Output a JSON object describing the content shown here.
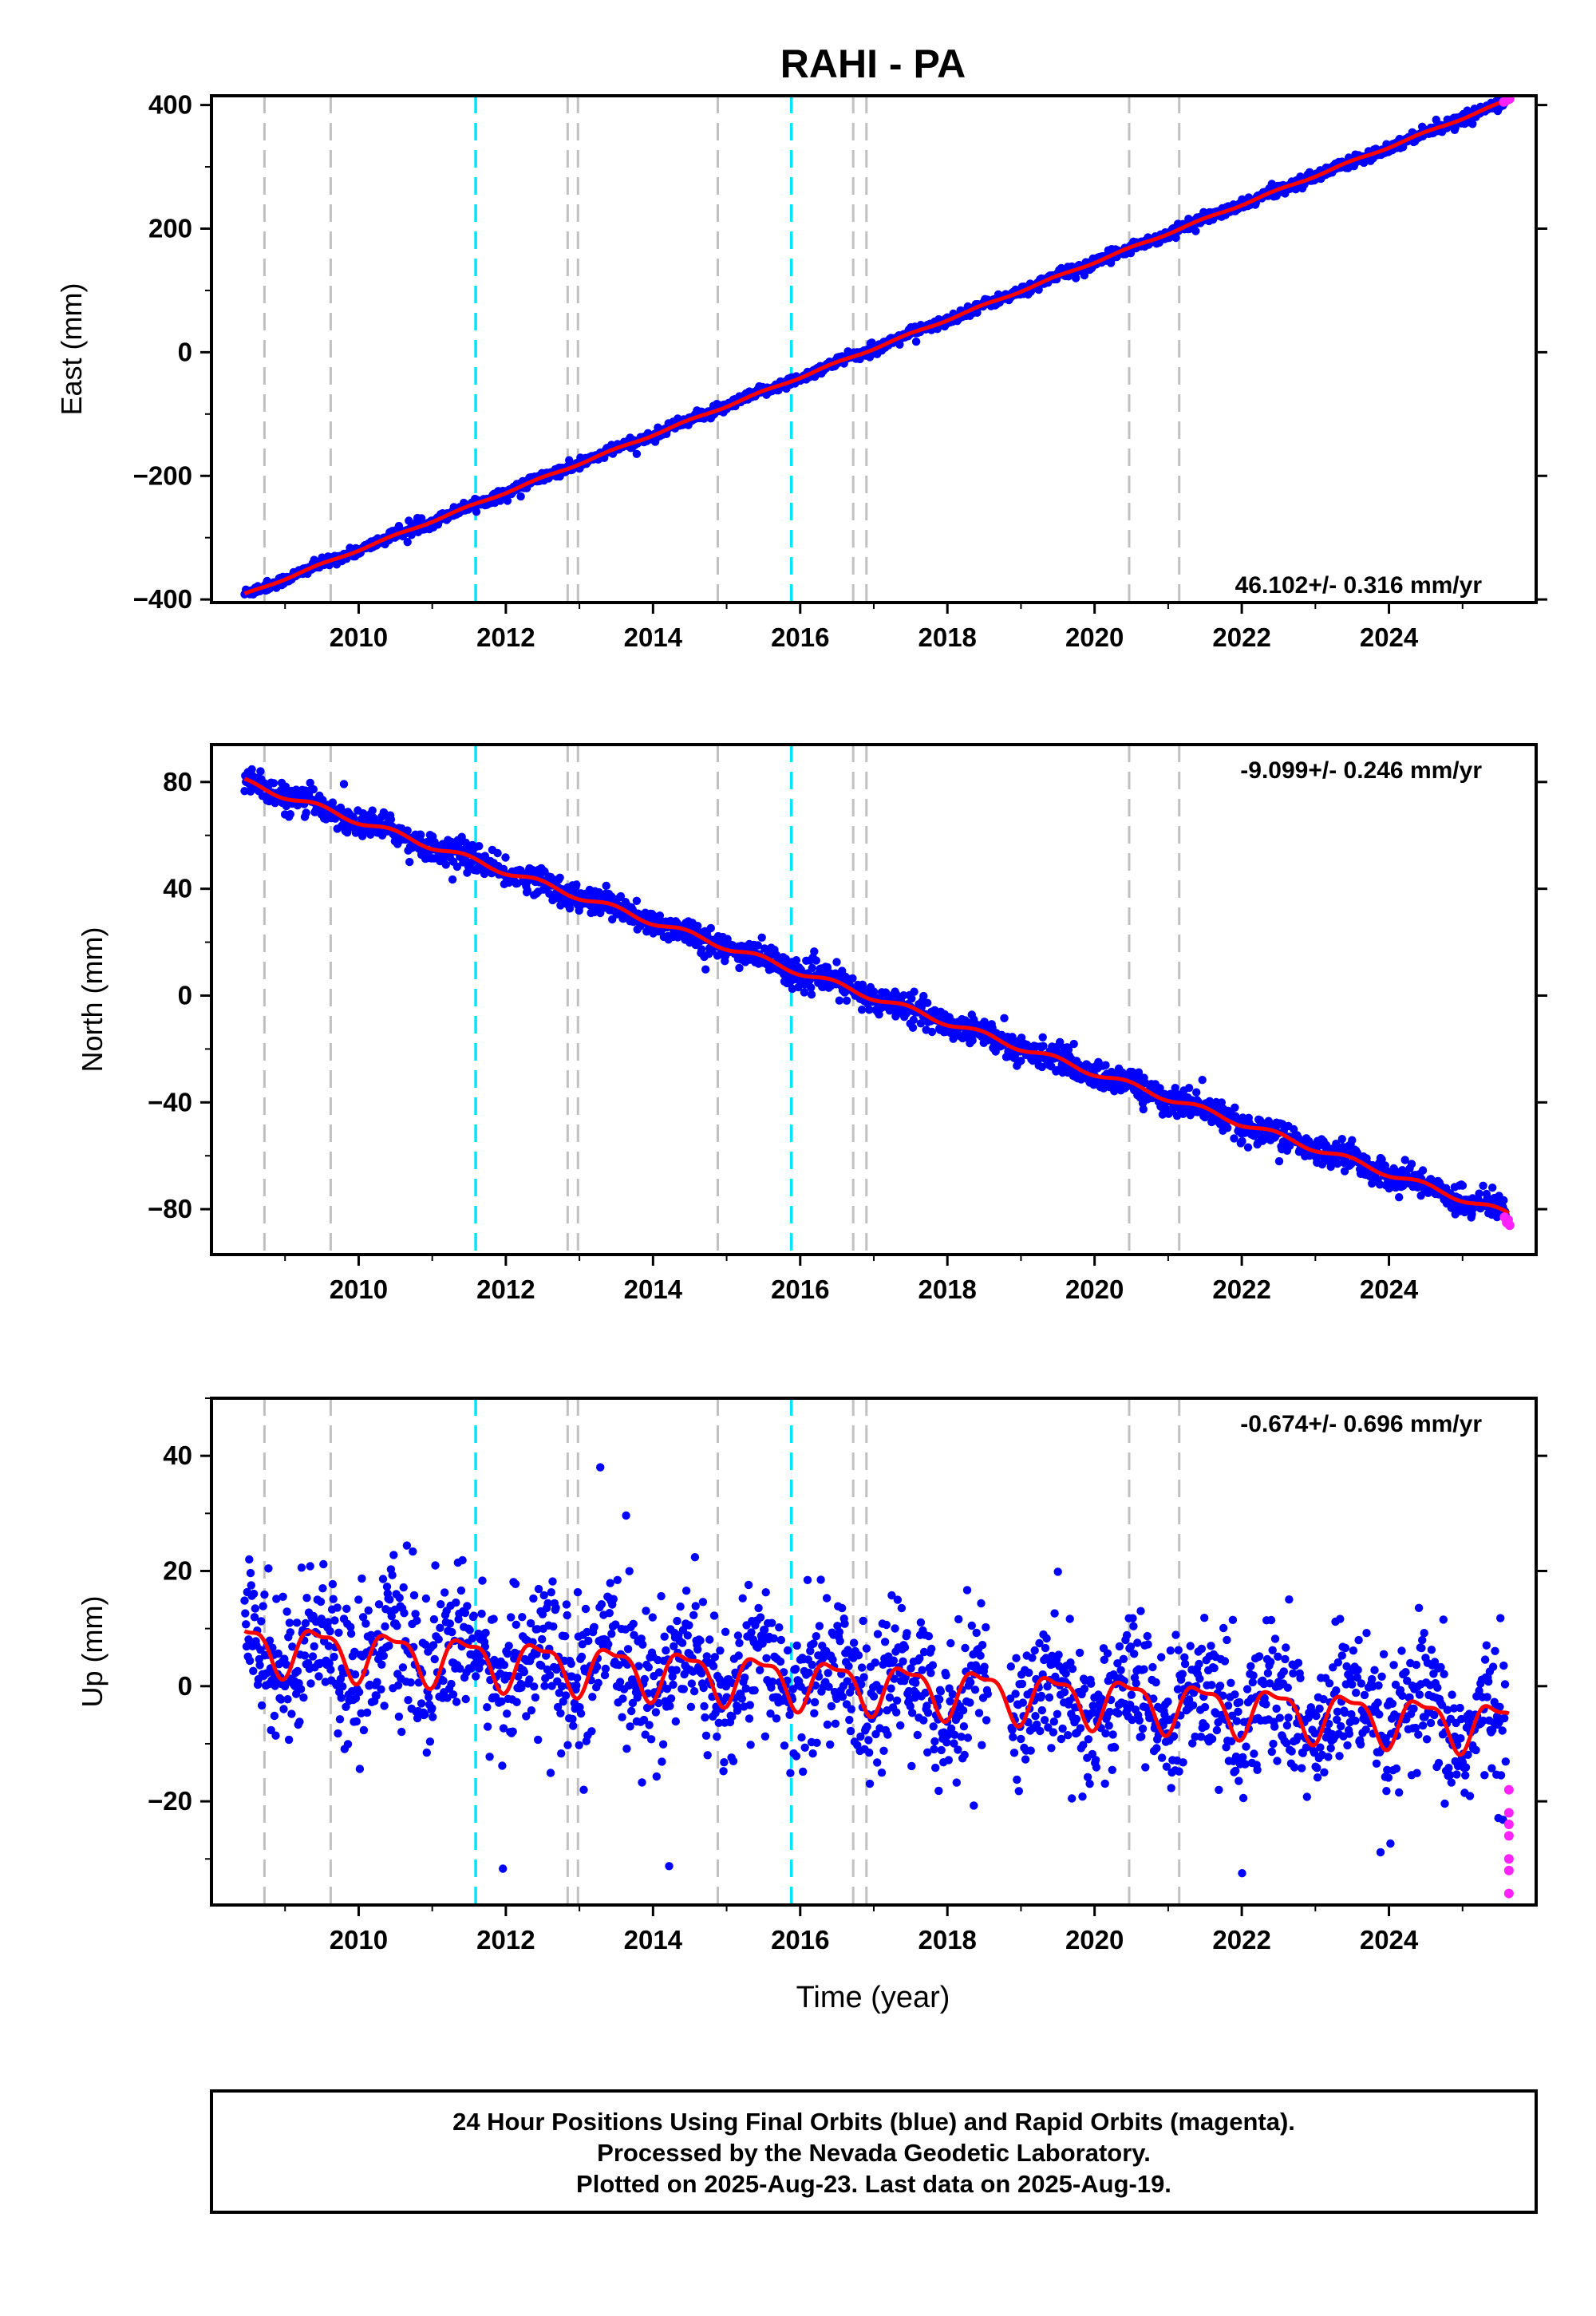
{
  "chart_data": [
    {
      "type": "scatter",
      "title": "RAHI - PA",
      "ylabel": "East (mm)",
      "xlim": [
        2008.0,
        2026.0
      ],
      "ylim": [
        -405,
        415
      ],
      "xticks": [
        2010,
        2012,
        2014,
        2016,
        2018,
        2020,
        2022,
        2024
      ],
      "yticks": [
        400,
        200,
        0,
        -200,
        -400
      ],
      "ytick_labels": [
        "400",
        "200",
        "0",
        "−200",
        "−400"
      ],
      "rate_label": "46.102+/- 0.316 mm/yr",
      "rate_position": "bottom-right",
      "start": [
        2008.45,
        -392
      ],
      "end": [
        2025.63,
        408
      ],
      "trend": 46.102,
      "noise": 4,
      "seasonal": 1.5,
      "rapid_points": [
        [
          2025.56,
          405
        ],
        [
          2025.59,
          407
        ],
        [
          2025.62,
          409
        ],
        [
          2025.64,
          410
        ]
      ]
    },
    {
      "type": "scatter",
      "title": "",
      "ylabel": "North (mm)",
      "xlim": [
        2008.0,
        2026.0
      ],
      "ylim": [
        -97,
        94
      ],
      "xticks": [
        2010,
        2012,
        2014,
        2016,
        2018,
        2020,
        2022,
        2024
      ],
      "yticks": [
        80,
        40,
        0,
        -40,
        -80
      ],
      "ytick_labels": [
        "80",
        "40",
        "0",
        "−40",
        "−80"
      ],
      "rate_label": "-9.099+/- 0.246 mm/yr",
      "rate_position": "top-right",
      "start": [
        2008.45,
        80
      ],
      "end": [
        2025.63,
        -82
      ],
      "trend": -9.099,
      "noise": 2.5,
      "seasonal": 1.2,
      "rapid_points": [
        [
          2025.57,
          -83
        ],
        [
          2025.6,
          -85
        ],
        [
          2025.62,
          -84
        ],
        [
          2025.64,
          -86
        ]
      ]
    },
    {
      "type": "scatter",
      "title": "",
      "ylabel": "Up (mm)",
      "xlabel": "Time (year)",
      "xlim": [
        2008.0,
        2026.0
      ],
      "ylim": [
        -38,
        50
      ],
      "xticks": [
        2010,
        2012,
        2014,
        2016,
        2018,
        2020,
        2022,
        2024
      ],
      "yticks": [
        40,
        20,
        0,
        -20
      ],
      "ytick_labels": [
        "40",
        "20",
        "0",
        "−20"
      ],
      "rate_label": "-0.674+/- 0.696 mm/yr",
      "rate_position": "top-right",
      "start": [
        2008.45,
        7
      ],
      "end": [
        2025.63,
        -7
      ],
      "trend": -0.674,
      "noise": 6,
      "seasonal": 4,
      "rapid_points": [
        [
          2025.63,
          -18
        ],
        [
          2025.63,
          -22
        ],
        [
          2025.63,
          -24
        ],
        [
          2025.63,
          -26
        ],
        [
          2025.63,
          -30
        ],
        [
          2025.63,
          -32
        ],
        [
          2025.63,
          -36
        ]
      ]
    }
  ],
  "events": {
    "gray_lines": [
      2008.72,
      2009.62,
      2012.84,
      2012.98,
      2014.88,
      2016.72,
      2016.9,
      2020.47,
      2021.15
    ],
    "cyan_lines": [
      2011.59,
      2015.88
    ]
  },
  "colors": {
    "final_orbits": "#0000ff",
    "rapid_orbits": "#ff22ff",
    "fit_line": "#ff0000",
    "event_gray": "#c0c0c0",
    "event_cyan": "#00e5ff"
  },
  "footer": {
    "line1": "24 Hour Positions Using Final Orbits (blue) and Rapid Orbits (magenta).",
    "line2": "Processed by the Nevada Geodetic Laboratory.",
    "line3": "Plotted on 2025-Aug-23. Last data on 2025-Aug-19."
  }
}
